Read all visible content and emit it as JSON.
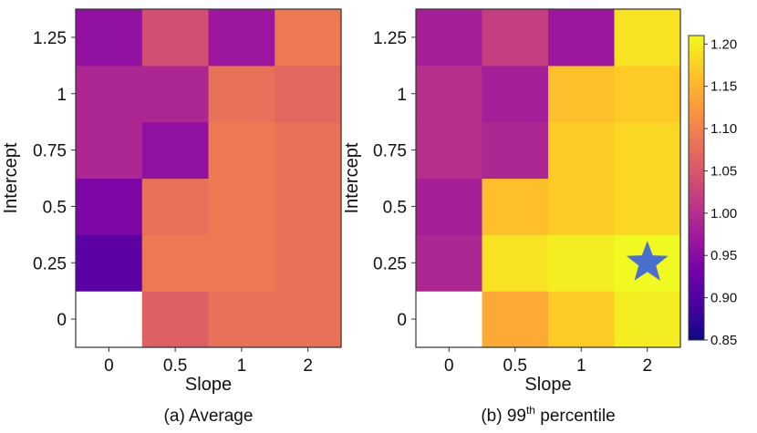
{
  "chart_data": [
    {
      "type": "heatmap",
      "caption": "(a) Average",
      "xlabel": "Slope",
      "ylabel": "Intercept",
      "x_ticks": [
        "0",
        "0.5",
        "1",
        "2"
      ],
      "y_ticks": [
        "0",
        "0.25",
        "0.5",
        "0.75",
        "1",
        "1.25"
      ],
      "values": [
        [
          null,
          1.06,
          1.08,
          1.08
        ],
        [
          0.91,
          1.09,
          1.09,
          1.08
        ],
        [
          0.94,
          1.08,
          1.09,
          1.08
        ],
        [
          0.99,
          0.96,
          1.09,
          1.08
        ],
        [
          0.99,
          0.99,
          1.08,
          1.07
        ],
        [
          0.96,
          1.04,
          0.97,
          1.09
        ]
      ]
    },
    {
      "type": "heatmap",
      "caption_prefix": "(b) 99",
      "caption_sup": "th",
      "caption_suffix": " percentile",
      "xlabel": "Slope",
      "ylabel": "Intercept",
      "x_ticks": [
        "0",
        "0.5",
        "1",
        "2"
      ],
      "y_ticks": [
        "0",
        "0.25",
        "0.5",
        "0.75",
        "1",
        "1.25"
      ],
      "values": [
        [
          null,
          1.14,
          1.17,
          1.2
        ],
        [
          0.99,
          1.19,
          1.2,
          1.21
        ],
        [
          0.98,
          1.16,
          1.17,
          1.18
        ],
        [
          1.0,
          0.99,
          1.17,
          1.18
        ],
        [
          1.0,
          0.98,
          1.16,
          1.17
        ],
        [
          0.98,
          1.02,
          0.97,
          1.19
        ]
      ],
      "highlight": {
        "marker": "star",
        "slope": "2",
        "intercept": "0.25",
        "color": "#4a6fcf"
      }
    }
  ],
  "colorbar": {
    "min": 0.85,
    "max": 1.21,
    "ticks": [
      "0.85",
      "0.90",
      "0.95",
      "1.00",
      "1.05",
      "1.10",
      "1.15",
      "1.20"
    ],
    "colormap": "plasma"
  }
}
